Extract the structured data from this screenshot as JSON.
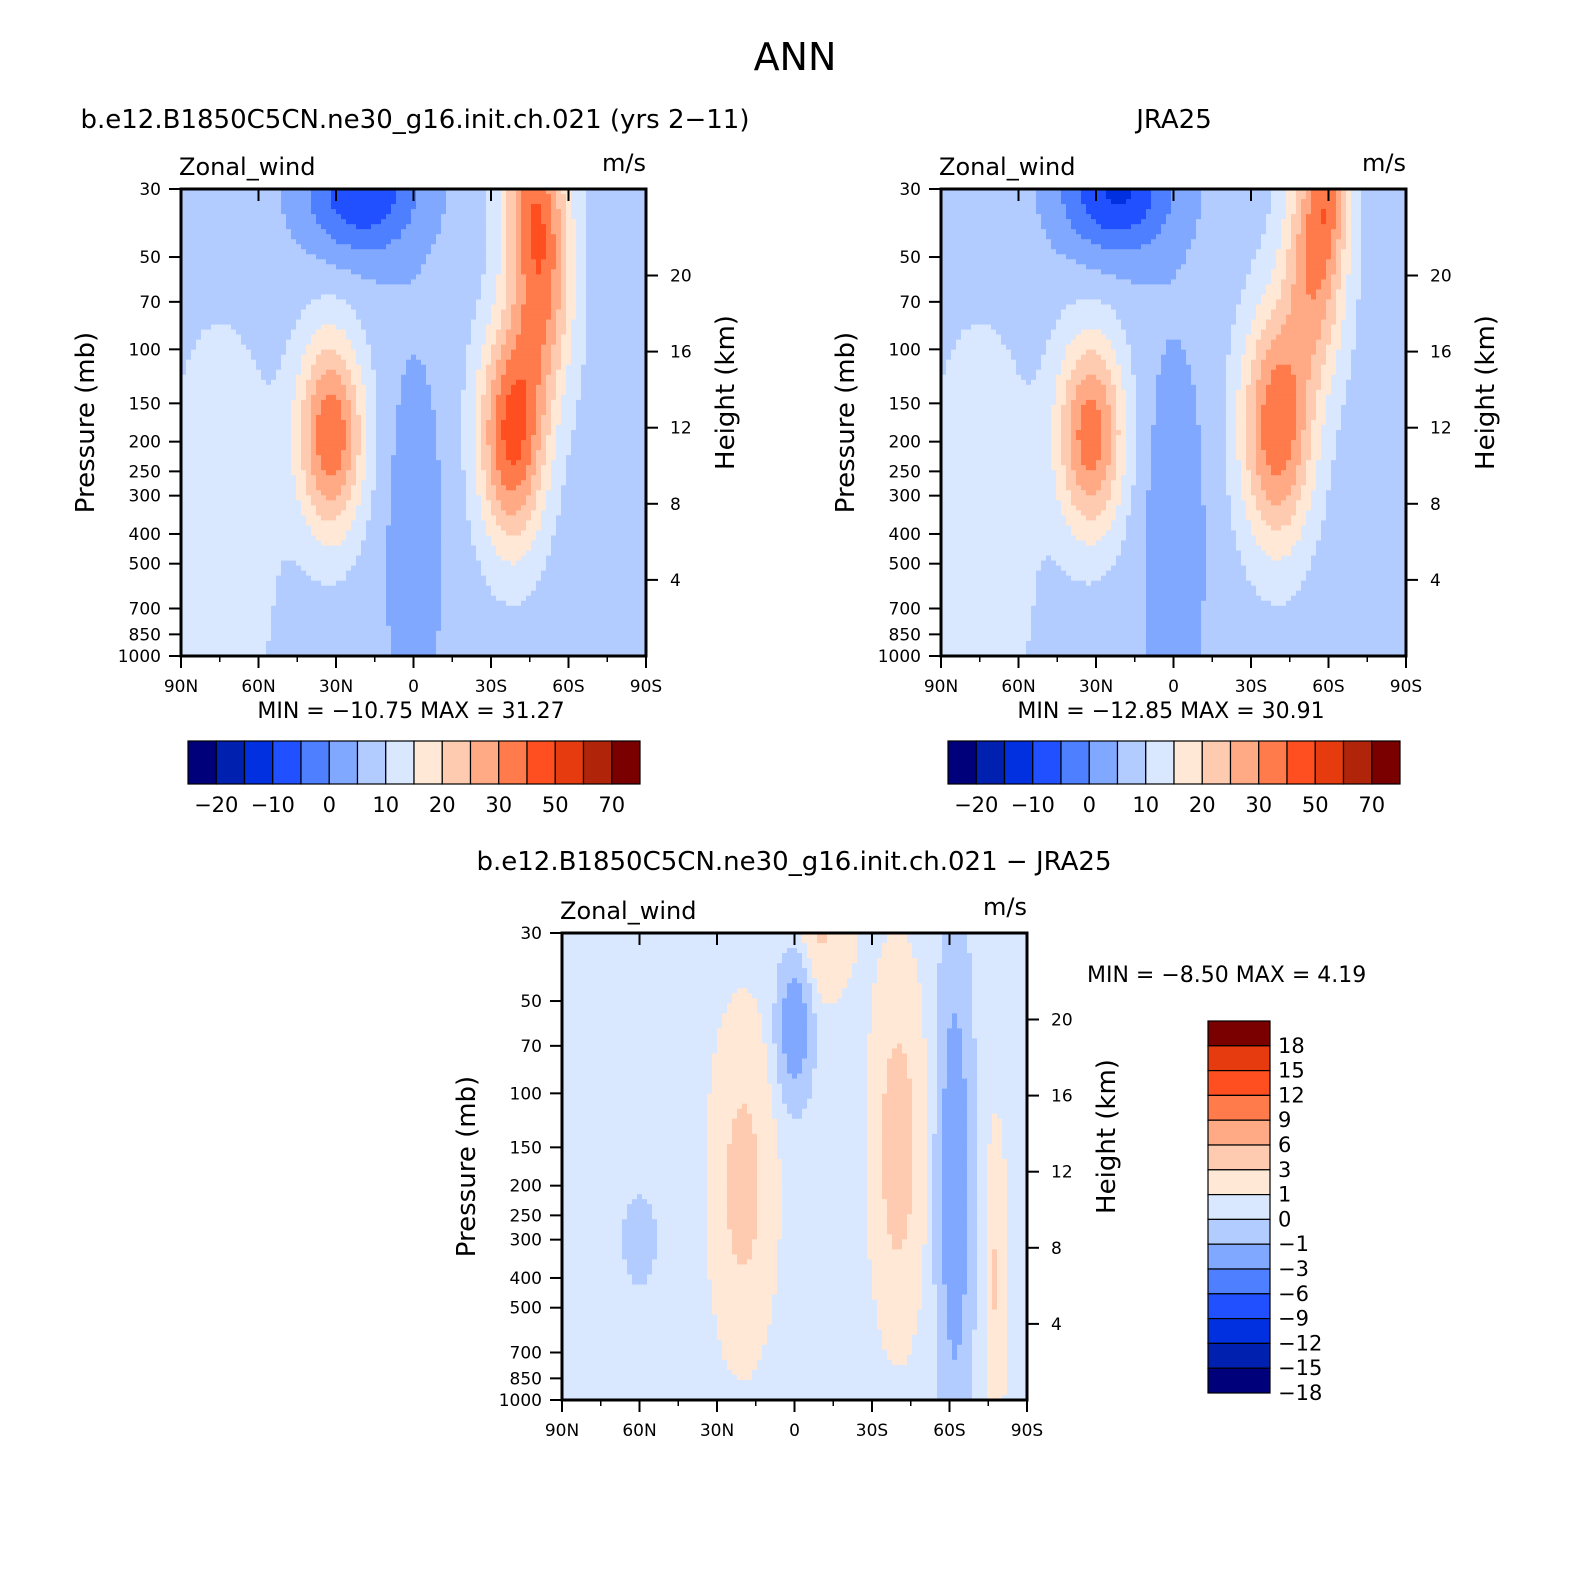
{
  "figure_title": "ANN",
  "colors": {
    "diverging": [
      "#00007a",
      "#0020b0",
      "#0030e0",
      "#2050ff",
      "#4d7fff",
      "#80a8ff",
      "#b3ccff",
      "#d9e8ff",
      "#ffe8d6",
      "#ffcbb0",
      "#ffaa85",
      "#ff7b4b",
      "#ff4e20",
      "#e63a0f",
      "#b0240a",
      "#7a0000"
    ]
  },
  "chart_data": [
    {
      "type": "contour",
      "panel": "model",
      "title": "b.e12.B1850C5CN.ne30_g16.init.ch.021 (yrs 2-11)",
      "left_label": "Zonal_wind",
      "right_label": "m/s",
      "ylabel": "Pressure (mb)",
      "ylabel_right": "Height (km)",
      "x_ticklabels": [
        "90N",
        "60N",
        "30N",
        "0",
        "30S",
        "60S",
        "90S"
      ],
      "x_values": [
        90,
        60,
        30,
        0,
        -30,
        -60,
        -90
      ],
      "y_ticklabels": [
        "30",
        "50",
        "70",
        "100",
        "150",
        "200",
        "250",
        "300",
        "400",
        "500",
        "700",
        "850",
        "1000"
      ],
      "y_values": [
        30,
        50,
        70,
        100,
        150,
        200,
        250,
        300,
        400,
        500,
        700,
        850,
        1000
      ],
      "height_ticklabels": [
        "4",
        "8",
        "12",
        "16",
        "20"
      ],
      "height_values": [
        4,
        8,
        12,
        16,
        20
      ],
      "stats": {
        "min_label": "MIN =",
        "min": "-10.75",
        "max_label": "MAX =",
        "max": "31.27"
      },
      "colorbar": {
        "orientation": "horizontal",
        "levels": [
          -25,
          -20,
          -15,
          -10,
          -5,
          0,
          5,
          10,
          15,
          20,
          25,
          30,
          40,
          50,
          60,
          70
        ],
        "tick_labels": [
          "-20",
          "-10",
          "0",
          "10",
          "20",
          "30",
          "50",
          "70"
        ]
      }
    },
    {
      "type": "contour",
      "panel": "obs",
      "title": "JRA25",
      "left_label": "Zonal_wind",
      "right_label": "m/s",
      "ylabel": "Pressure (mb)",
      "ylabel_right": "Height (km)",
      "x_ticklabels": [
        "90N",
        "60N",
        "30N",
        "0",
        "30S",
        "60S",
        "90S"
      ],
      "x_values": [
        90,
        60,
        30,
        0,
        -30,
        -60,
        -90
      ],
      "y_ticklabels": [
        "30",
        "50",
        "70",
        "100",
        "150",
        "200",
        "250",
        "300",
        "400",
        "500",
        "700",
        "850",
        "1000"
      ],
      "y_values": [
        30,
        50,
        70,
        100,
        150,
        200,
        250,
        300,
        400,
        500,
        700,
        850,
        1000
      ],
      "height_ticklabels": [
        "4",
        "8",
        "12",
        "16",
        "20"
      ],
      "height_values": [
        4,
        8,
        12,
        16,
        20
      ],
      "stats": {
        "min_label": "MIN =",
        "min": "-12.85",
        "max_label": "MAX =",
        "max": "30.91"
      },
      "colorbar": {
        "orientation": "horizontal",
        "levels": [
          -25,
          -20,
          -15,
          -10,
          -5,
          0,
          5,
          10,
          15,
          20,
          25,
          30,
          40,
          50,
          60,
          70
        ],
        "tick_labels": [
          "-20",
          "-10",
          "0",
          "10",
          "20",
          "30",
          "50",
          "70"
        ]
      }
    },
    {
      "type": "contour",
      "panel": "diff",
      "title": "b.e12.B1850C5CN.ne30_g16.init.ch.021 - JRA25",
      "left_label": "Zonal_wind",
      "right_label": "m/s",
      "ylabel": "Pressure (mb)",
      "ylabel_right": "Height (km)",
      "x_ticklabels": [
        "90N",
        "60N",
        "30N",
        "0",
        "30S",
        "60S",
        "90S"
      ],
      "x_values": [
        90,
        60,
        30,
        0,
        -30,
        -60,
        -90
      ],
      "y_ticklabels": [
        "30",
        "50",
        "70",
        "100",
        "150",
        "200",
        "250",
        "300",
        "400",
        "500",
        "700",
        "850",
        "1000"
      ],
      "y_values": [
        30,
        50,
        70,
        100,
        150,
        200,
        250,
        300,
        400,
        500,
        700,
        850,
        1000
      ],
      "height_ticklabels": [
        "4",
        "8",
        "12",
        "16",
        "20"
      ],
      "height_values": [
        4,
        8,
        12,
        16,
        20
      ],
      "stats": {
        "min_label": "MIN =",
        "min": "-8.50",
        "max_label": "MAX =",
        "max": "4.19"
      },
      "colorbar": {
        "orientation": "vertical",
        "levels": [
          -18,
          -15,
          -12,
          -9,
          -6,
          -3,
          -1,
          0,
          1,
          3,
          6,
          9,
          12,
          15,
          18
        ],
        "tick_labels": [
          "18",
          "15",
          "12",
          "9",
          "6",
          "3",
          "1",
          "0",
          "-1",
          "-3",
          "-6",
          "-9",
          "-12",
          "-15",
          "-18"
        ]
      }
    }
  ]
}
